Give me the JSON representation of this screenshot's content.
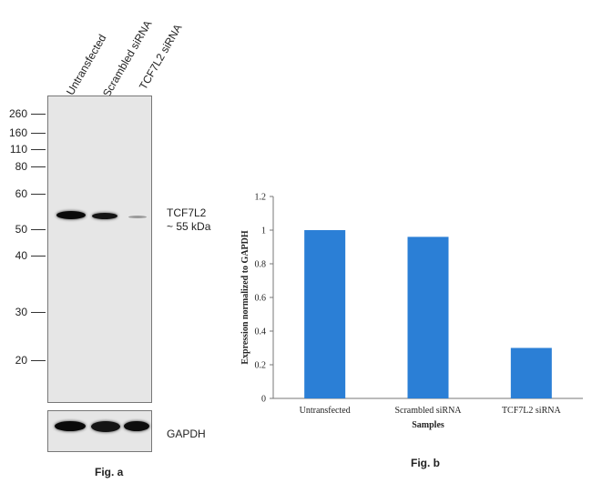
{
  "blot": {
    "lanes": [
      "Untransfected",
      "Scrambled siRNA",
      "TCF7L2 siRNA"
    ],
    "mw_markers": [
      "260",
      "160",
      "110",
      "80",
      "60",
      "50",
      "40",
      "30",
      "20"
    ],
    "target_label_line1": "TCF7L2",
    "target_label_line2": "~ 55 kDa",
    "loading_control_label": "GAPDH",
    "caption": "Fig. a"
  },
  "chart_caption": "Fig. b",
  "chart_data": {
    "type": "bar",
    "categories": [
      "Untransfected",
      "Scrambled siRNA",
      "TCF7L2 siRNA"
    ],
    "values": [
      1.0,
      0.96,
      0.3
    ],
    "xlabel": "Samples",
    "ylabel": "Expression normalized to GAPDH",
    "ylim": [
      0,
      1.2
    ],
    "yticks": [
      "0",
      "0.2",
      "0.4",
      "0.6",
      "0.8",
      "1",
      "1.2"
    ],
    "grid": false,
    "bar_color": "#2b7fd6"
  }
}
